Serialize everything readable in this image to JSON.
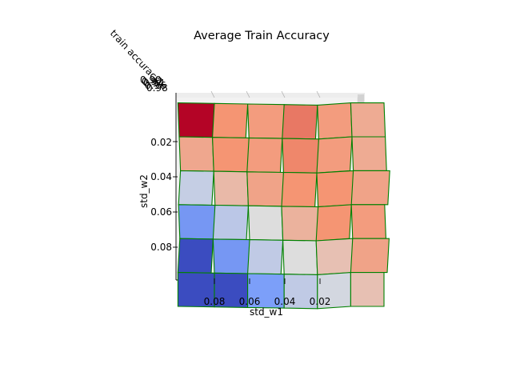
{
  "chart_data": {
    "type": "heatmap",
    "title": "Average Train Accuracy",
    "xlabel": "std_w1",
    "ylabel": "std_w2",
    "zlabel": "train accuracy",
    "x_ticks": [
      "0.08",
      "0.06",
      "0.04",
      "0.02"
    ],
    "y_ticks": [
      "0.02",
      "0.04",
      "0.06",
      "0.08"
    ],
    "z_ticks": [
      "0.90",
      "0.92",
      "0.94",
      "0.96",
      "0.98"
    ],
    "x": [
      0.1,
      0.08,
      0.06,
      0.04,
      0.02,
      0.0
    ],
    "y": [
      0.0,
      0.02,
      0.04,
      0.06,
      0.08,
      0.1
    ],
    "z_range": [
      0.9,
      0.98
    ],
    "colormap": "coolwarm",
    "edge_color": "#008000",
    "values": [
      [
        0.98,
        0.96,
        0.958,
        0.964,
        0.958,
        0.954
      ],
      [
        0.955,
        0.96,
        0.958,
        0.962,
        0.958,
        0.954
      ],
      [
        0.935,
        0.95,
        0.956,
        0.96,
        0.96,
        0.956
      ],
      [
        0.918,
        0.933,
        0.94,
        0.952,
        0.96,
        0.958
      ],
      [
        0.9,
        0.918,
        0.934,
        0.94,
        0.948,
        0.956
      ],
      [
        0.88,
        0.9,
        0.92,
        0.934,
        0.938,
        0.948
      ]
    ]
  }
}
